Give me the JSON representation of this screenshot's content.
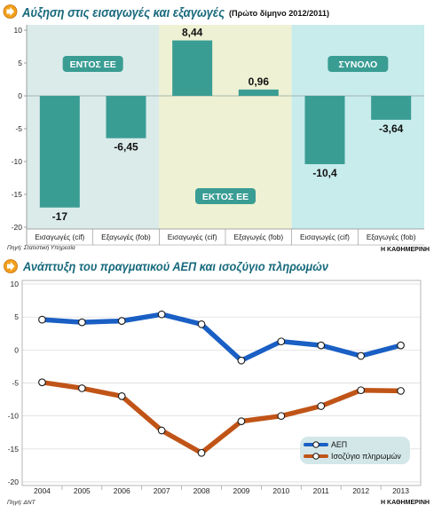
{
  "brand": "Η ΚΑΘΗΜΕΡΙΝΗ",
  "header_icon": "pointer-icon",
  "title_color": "#17697c",
  "chart_data": [
    {
      "type": "bar",
      "title": "Αύξηση στις εισαγωγές και εξαγωγές",
      "subtitle": "(Πρώτο δίμηνο 2012/2011)",
      "source": "Πηγή: Στατιστική Υπηρεσία",
      "bar_color": "#3a9d94",
      "ylim": [
        -20,
        10
      ],
      "yticks": [
        10,
        5,
        0,
        -5,
        -10,
        -15,
        -20
      ],
      "grid": false,
      "groups": [
        {
          "label": "ΕΝΤΟΣ ΕΕ",
          "background": "#dbebea",
          "categories": [
            "Εισαγωγές (cif)",
            "Εξαγωγές (fob)"
          ],
          "values": [
            -17,
            -6.45
          ],
          "value_labels": [
            "-17",
            "-6,45"
          ]
        },
        {
          "label": "ΕΚΤΟΣ ΕΕ",
          "background": "#eef1d3",
          "categories": [
            "Εισαγωγές (cif)",
            "Εξαγωγές (fob)"
          ],
          "values": [
            8.44,
            0.96
          ],
          "value_labels": [
            "8,44",
            "0,96"
          ]
        },
        {
          "label": "ΣΥΝΟΛΟ",
          "background": "#c8ebec",
          "categories": [
            "Εισαγωγές (cif)",
            "Εξαγωγές (fob)"
          ],
          "values": [
            -10.4,
            -3.64
          ],
          "value_labels": [
            "-10,4",
            "-3,64"
          ]
        }
      ]
    },
    {
      "type": "line",
      "title": "Ανάπτυξη του πραγματικού ΑΕΠ και ισοζύγιο πληρωμών",
      "source": "Πηγή: ΔΝΤ",
      "x": [
        2004,
        2005,
        2006,
        2007,
        2008,
        2009,
        2010,
        2011,
        2012,
        2013
      ],
      "ylim": [
        -20,
        10
      ],
      "yticks": [
        10,
        5,
        0,
        -5,
        -10,
        -15,
        -20
      ],
      "grid": true,
      "legend": "bottom-right",
      "series": [
        {
          "name": "ΑΕΠ",
          "color": "#1a5fc4",
          "values": [
            4.6,
            4.2,
            4.4,
            5.4,
            3.9,
            -1.6,
            1.3,
            0.7,
            -0.9,
            0.7
          ]
        },
        {
          "name": "Ισοζύγιο πληρωμών",
          "color": "#c05417",
          "values": [
            -4.9,
            -5.8,
            -7.0,
            -12.2,
            -15.6,
            -10.8,
            -10.0,
            -8.5,
            -6.1,
            -6.2
          ]
        }
      ]
    }
  ]
}
